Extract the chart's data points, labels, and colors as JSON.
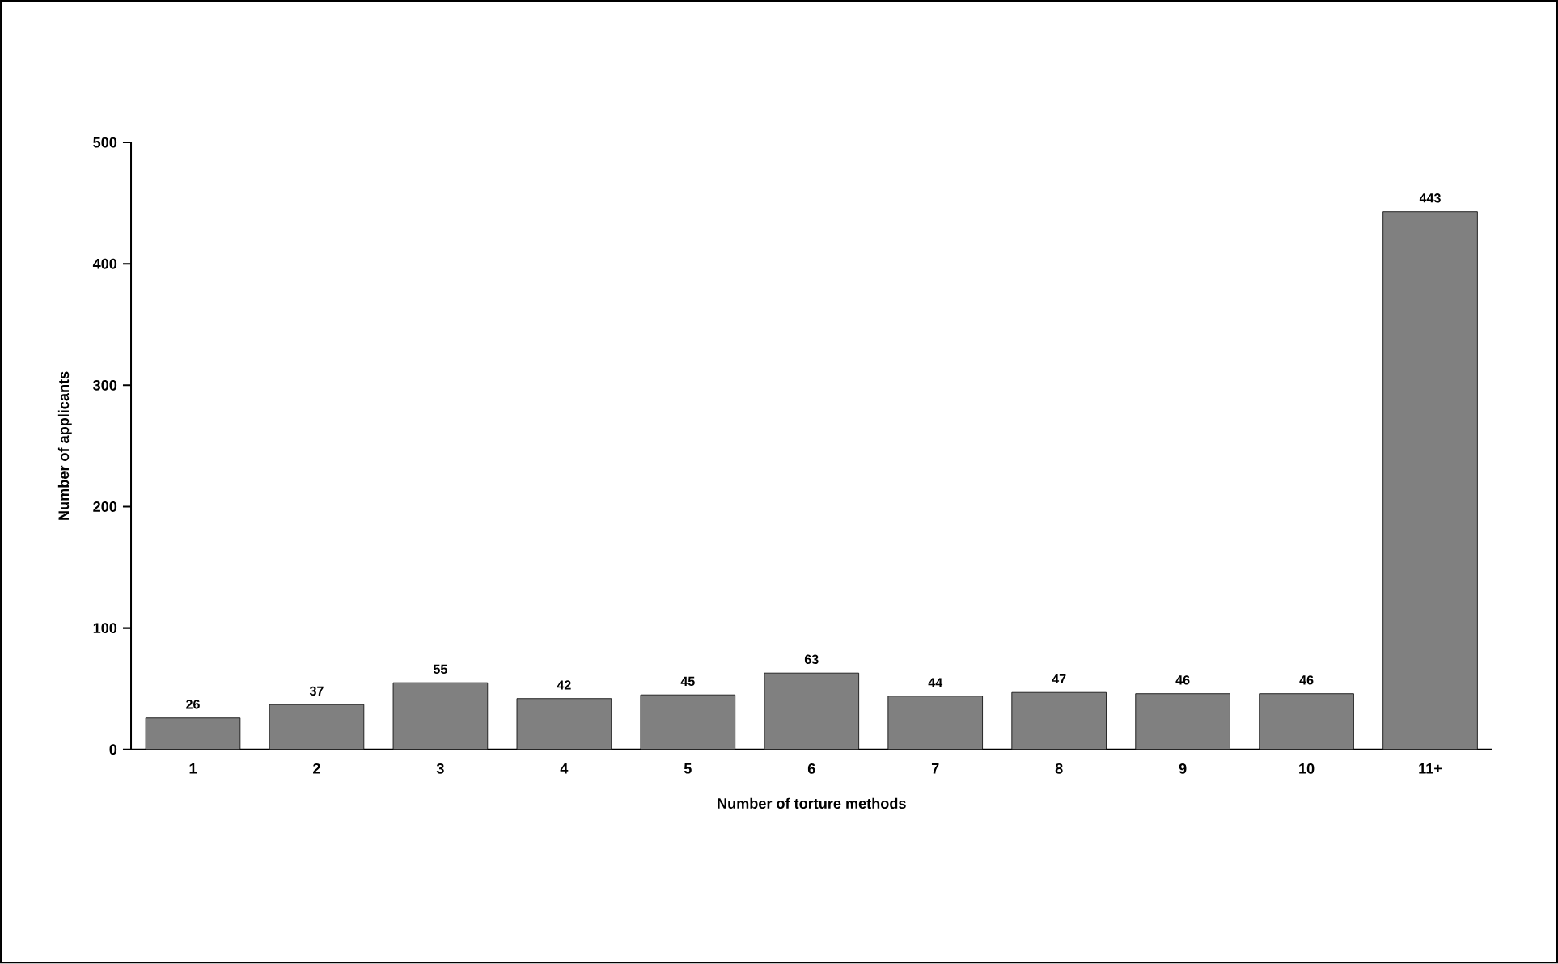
{
  "chart_data": {
    "type": "bar",
    "xlabel": "Number of torture methods",
    "ylabel": "Number of applicants",
    "categories": [
      "1",
      "2",
      "3",
      "4",
      "5",
      "6",
      "7",
      "8",
      "9",
      "10",
      "11+"
    ],
    "values": [
      26,
      37,
      55,
      42,
      45,
      63,
      44,
      47,
      46,
      46,
      443
    ],
    "color": "#808080",
    "ylim": [
      0,
      500
    ],
    "yticks": [
      0,
      100,
      200,
      300,
      400,
      500
    ],
    "data_labels": true
  }
}
